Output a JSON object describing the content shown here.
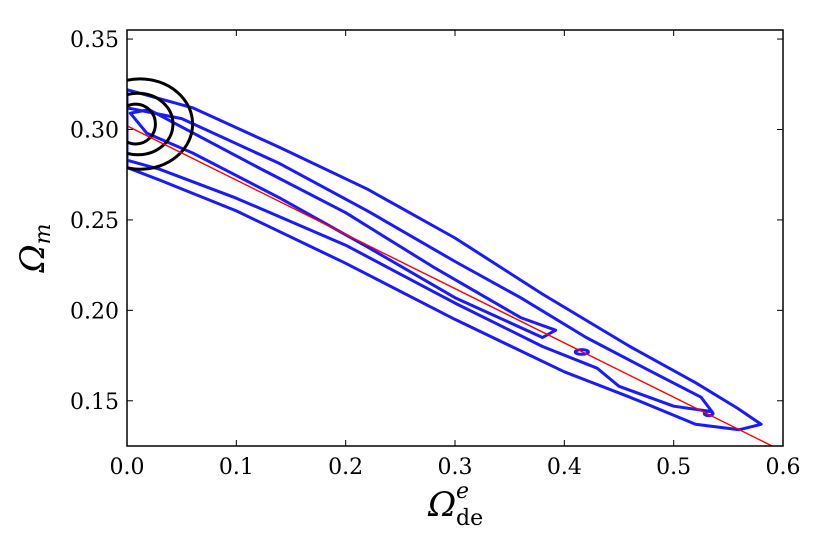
{
  "chart_data": {
    "type": "contour",
    "xlabel": "Ω",
    "xlabel_sup": "e",
    "xlabel_sub": "de",
    "ylabel": "Ω",
    "ylabel_sub": "m",
    "xlim": [
      0.0,
      0.6
    ],
    "ylim": [
      0.125,
      0.355
    ],
    "x_ticks": [
      "0.0",
      "0.1",
      "0.2",
      "0.3",
      "0.4",
      "0.5",
      "0.6"
    ],
    "y_ticks": [
      "0.15",
      "0.20",
      "0.25",
      "0.30",
      "0.35"
    ],
    "grid": false,
    "colors": {
      "blue_contours": "#1a1aff",
      "black_contours": "#000000",
      "fit_line": "#ff0000"
    },
    "fit_line": {
      "x": [
        0.0,
        0.59
      ],
      "y": [
        0.302,
        0.125
      ]
    },
    "black_contours": [
      {
        "level": 1,
        "center": [
          0.008,
          0.303
        ],
        "rx": 0.018,
        "ry": 0.011
      },
      {
        "level": 2,
        "center": [
          0.01,
          0.303
        ],
        "rx": 0.032,
        "ry": 0.017
      },
      {
        "level": 3,
        "center": [
          0.012,
          0.303
        ],
        "rx": 0.048,
        "ry": 0.025
      }
    ],
    "blue_contours": [
      {
        "level": 1,
        "points": [
          [
            0.018,
            0.298
          ],
          [
            0.003,
            0.309
          ],
          [
            0.02,
            0.311
          ],
          [
            0.12,
            0.279
          ],
          [
            0.2,
            0.254
          ],
          [
            0.28,
            0.224
          ],
          [
            0.36,
            0.196
          ],
          [
            0.392,
            0.189
          ],
          [
            0.38,
            0.185
          ],
          [
            0.3,
            0.207
          ],
          [
            0.22,
            0.235
          ],
          [
            0.14,
            0.262
          ],
          [
            0.06,
            0.287
          ],
          [
            0.018,
            0.298
          ]
        ]
      },
      {
        "level": 2,
        "points": [
          [
            0.0,
            0.283
          ],
          [
            0.0,
            0.312
          ],
          [
            0.05,
            0.306
          ],
          [
            0.14,
            0.281
          ],
          [
            0.22,
            0.255
          ],
          [
            0.3,
            0.227
          ],
          [
            0.36,
            0.207
          ],
          [
            0.42,
            0.185
          ],
          [
            0.48,
            0.166
          ],
          [
            0.525,
            0.152
          ],
          [
            0.535,
            0.144
          ],
          [
            0.5,
            0.147
          ],
          [
            0.45,
            0.158
          ],
          [
            0.43,
            0.168
          ],
          [
            0.38,
            0.18
          ],
          [
            0.3,
            0.204
          ],
          [
            0.2,
            0.236
          ],
          [
            0.1,
            0.262
          ],
          [
            0.03,
            0.278
          ],
          [
            0.0,
            0.283
          ]
        ]
      },
      {
        "level": 3,
        "points": [
          [
            0.0,
            0.279
          ],
          [
            0.0,
            0.322
          ],
          [
            0.06,
            0.312
          ],
          [
            0.14,
            0.29
          ],
          [
            0.22,
            0.267
          ],
          [
            0.3,
            0.24
          ],
          [
            0.38,
            0.209
          ],
          [
            0.46,
            0.18
          ],
          [
            0.52,
            0.16
          ],
          [
            0.558,
            0.146
          ],
          [
            0.58,
            0.137
          ],
          [
            0.56,
            0.134
          ],
          [
            0.52,
            0.137
          ],
          [
            0.46,
            0.152
          ],
          [
            0.4,
            0.166
          ],
          [
            0.3,
            0.195
          ],
          [
            0.2,
            0.226
          ],
          [
            0.1,
            0.255
          ],
          [
            0.03,
            0.272
          ],
          [
            0.0,
            0.279
          ]
        ]
      }
    ],
    "blue_islands": [
      {
        "center": [
          0.416,
          0.177
        ],
        "rx": 0.006,
        "ry": 0.0013
      },
      {
        "center": [
          0.532,
          0.143
        ],
        "rx": 0.004,
        "ry": 0.0012
      }
    ]
  }
}
